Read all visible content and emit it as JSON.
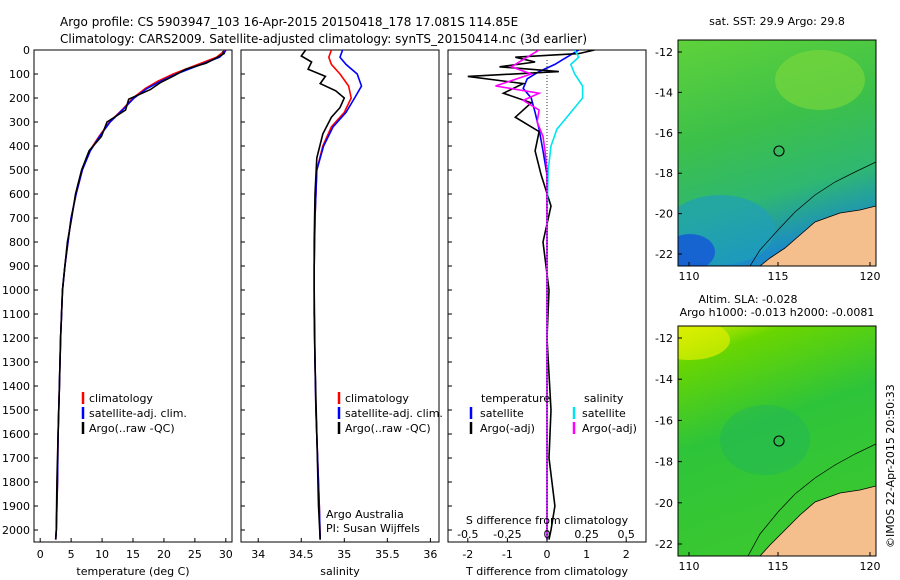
{
  "header": {
    "line1": "Argo profile: CS 5903947_103 16-Apr-2015 20150418_178 17.081S 114.85E",
    "line2": "Climatology: CARS2009. Satellite-adjusted climatology: synTS_20150414.nc (3d earlier)"
  },
  "colors": {
    "climatology": "#ff0000",
    "satellite": "#0000ff",
    "argo": "#000000",
    "sat_salinity": "#00e5ee",
    "argo_salinity": "#ff00ff",
    "land": "#f4bf8c"
  },
  "chart_data": [
    {
      "type": "line",
      "name": "temperature-profile",
      "xlabel": "temperature (deg C)",
      "ylabel": "",
      "xlim": [
        -1,
        31
      ],
      "ylim": [
        2050,
        0
      ],
      "y_inverted": true,
      "x_ticks": [
        0,
        5,
        10,
        15,
        20,
        25,
        30
      ],
      "y_ticks": [
        0,
        100,
        200,
        300,
        400,
        500,
        600,
        700,
        800,
        900,
        1000,
        1100,
        1200,
        1300,
        1400,
        1500,
        1600,
        1700,
        1800,
        1900,
        2000
      ],
      "legend": [
        "climatology",
        "satellite-adj. clim.",
        "Argo(..raw -QC)"
      ],
      "series": [
        {
          "name": "climatology",
          "color": "#ff0000",
          "x": [
            29.8,
            29.5,
            28.5,
            26.5,
            24,
            21.5,
            19,
            17,
            15,
            13.2,
            11.2,
            9.5,
            8,
            6.8,
            5.8,
            5,
            4.5,
            4,
            3.6,
            3.3,
            3.1,
            2.9,
            2.8,
            2.6,
            2.5
          ],
          "y": [
            0,
            10,
            30,
            50,
            75,
            100,
            130,
            160,
            200,
            250,
            300,
            360,
            420,
            500,
            600,
            700,
            800,
            900,
            1000,
            1200,
            1400,
            1600,
            1800,
            2000,
            2040
          ]
        },
        {
          "name": "satellite-adj. clim.",
          "color": "#0000ff",
          "x": [
            30,
            29.8,
            29,
            27,
            24.5,
            22,
            19.5,
            17.3,
            15.2,
            13.3,
            11.3,
            9.6,
            8.1,
            6.8,
            5.8,
            5,
            4.5,
            4,
            3.6,
            3.3,
            3.1,
            2.9,
            2.8,
            2.6,
            2.5
          ],
          "y": [
            0,
            10,
            30,
            50,
            75,
            100,
            130,
            160,
            200,
            250,
            300,
            360,
            420,
            500,
            600,
            700,
            800,
            900,
            1000,
            1200,
            1400,
            1600,
            1800,
            2000,
            2040
          ]
        },
        {
          "name": "Argo(..raw -QC)",
          "color": "#000000",
          "x": [
            29.5,
            29.7,
            28.3,
            26.8,
            23.5,
            21.8,
            19.5,
            17.8,
            14.3,
            13.8,
            10.8,
            9.9,
            7.9,
            6.7,
            5.7,
            5.1,
            4.4,
            4,
            3.6,
            3.3,
            3.1,
            2.9,
            2.7,
            2.6,
            2.5
          ],
          "y": [
            5,
            15,
            35,
            55,
            80,
            105,
            135,
            165,
            205,
            250,
            300,
            360,
            420,
            500,
            600,
            700,
            800,
            900,
            1000,
            1200,
            1400,
            1600,
            1800,
            2000,
            2040
          ]
        }
      ]
    },
    {
      "type": "line",
      "name": "salinity-profile",
      "xlabel": "salinity",
      "ylabel": "",
      "xlim": [
        33.8,
        36.1
      ],
      "ylim": [
        2050,
        0
      ],
      "y_inverted": true,
      "x_ticks": [
        34,
        34.5,
        35,
        35.5,
        36
      ],
      "legend": [
        "climatology",
        "satellite-adj. clim.",
        "Argo(..raw -QC)"
      ],
      "annotation": [
        "Argo Australia",
        "PI: Susan Wijffels"
      ],
      "series": [
        {
          "name": "climatology",
          "color": "#ff0000",
          "x": [
            34.85,
            34.82,
            34.85,
            34.95,
            35.05,
            35.08,
            35.0,
            34.85,
            34.75,
            34.68,
            34.66,
            34.65,
            34.65,
            34.66,
            34.67,
            34.69,
            34.71,
            34.72
          ],
          "y": [
            0,
            30,
            60,
            100,
            150,
            200,
            260,
            320,
            400,
            500,
            700,
            900,
            1100,
            1300,
            1500,
            1700,
            1900,
            2040
          ]
        },
        {
          "name": "satellite-adj. clim.",
          "color": "#0000ff",
          "x": [
            34.98,
            34.95,
            35.02,
            35.15,
            35.2,
            35.12,
            35.02,
            34.87,
            34.76,
            34.68,
            34.66,
            34.65,
            34.65,
            34.66,
            34.67,
            34.69,
            34.71,
            34.72
          ],
          "y": [
            0,
            30,
            60,
            100,
            150,
            200,
            260,
            320,
            400,
            500,
            700,
            900,
            1100,
            1300,
            1500,
            1700,
            1900,
            2040
          ]
        },
        {
          "name": "Argo(..raw -QC)",
          "color": "#000000",
          "x": [
            34.55,
            34.5,
            34.62,
            34.58,
            34.78,
            34.72,
            34.9,
            35.0,
            34.95,
            34.85,
            34.75,
            34.68,
            34.66,
            34.65,
            34.65,
            34.66,
            34.68,
            34.7,
            34.72
          ],
          "y": [
            0,
            25,
            50,
            80,
            110,
            140,
            170,
            200,
            240,
            280,
            350,
            450,
            600,
            800,
            1000,
            1300,
            1600,
            1900,
            2040
          ]
        }
      ]
    },
    {
      "type": "line",
      "name": "difference-profile",
      "xlabel": "T difference from climatology",
      "xlabel_top": "S difference from climatology",
      "xlim": [
        -2.5,
        2.5
      ],
      "ylim": [
        2050,
        0
      ],
      "y_inverted": true,
      "x_ticks_t": [
        -2,
        -1,
        0,
        1,
        2
      ],
      "x_ticks_s": [
        "-0.5",
        "-0.25",
        "0",
        "0.25",
        "0.5"
      ],
      "legend_temperature": [
        "temperature",
        "satellite",
        "Argo(-adj)"
      ],
      "legend_salinity": [
        "salinity",
        "satellite",
        "Argo(-adj)"
      ],
      "series": [
        {
          "name": "temperature satellite",
          "color": "#0000ff",
          "x": [
            0.8,
            0.6,
            0.4,
            0.2,
            -0.2,
            -0.5,
            -0.6,
            -0.4,
            -0.3,
            -0.2,
            -0.1,
            0,
            0,
            0,
            0,
            0,
            0,
            0
          ],
          "y": [
            0,
            20,
            40,
            60,
            90,
            120,
            160,
            200,
            260,
            330,
            420,
            520,
            700,
            900,
            1200,
            1500,
            1800,
            2040
          ]
        },
        {
          "name": "temperature Argo(-adj)",
          "color": "#000000",
          "x": [
            1.2,
            0.8,
            -0.8,
            -0.3,
            -1.2,
            0.3,
            -2.0,
            -0.6,
            -1.1,
            -0.4,
            -0.8,
            -0.2,
            -0.3,
            -0.15,
            0.1,
            -0.1,
            0.05,
            0,
            0.1,
            0.05,
            0.2,
            0.1,
            0.05
          ],
          "y": [
            0,
            15,
            30,
            50,
            70,
            90,
            110,
            140,
            180,
            220,
            280,
            340,
            420,
            520,
            650,
            800,
            1000,
            1200,
            1500,
            1700,
            1900,
            2000,
            2040
          ]
        },
        {
          "name": "salinity satellite",
          "color": "#00e5ee",
          "x": [
            0.7,
            0.8,
            0.6,
            0.7,
            0.9,
            0.9,
            0.7,
            0.5,
            0.25,
            0.1,
            0.03,
            0,
            0
          ],
          "y": [
            0,
            30,
            60,
            100,
            150,
            200,
            240,
            280,
            330,
            400,
            500,
            700,
            2040
          ]
        },
        {
          "name": "salinity Argo(-adj)",
          "color": "#ff00ff",
          "x": [
            -0.2,
            -0.6,
            -0.9,
            -0.4,
            -1.3,
            -0.2,
            -0.6,
            -0.2,
            -0.25,
            -0.1,
            -0.05,
            0,
            0
          ],
          "y": [
            0,
            40,
            70,
            100,
            150,
            180,
            210,
            250,
            300,
            360,
            420,
            500,
            2040
          ]
        }
      ]
    }
  ],
  "maps": {
    "sst": {
      "title": "sat. SST: 29.9 Argo: 29.8",
      "x_ticks": [
        "110",
        "115",
        "120"
      ],
      "y_ticks": [
        "-12",
        "-14",
        "-16",
        "-18",
        "-20",
        "-22"
      ]
    },
    "sla": {
      "title1": "Altim. SLA: -0.028",
      "title2": "Argo h1000: -0.013 h2000: -0.0081",
      "x_ticks": [
        "110",
        "115",
        "120"
      ],
      "y_ticks": [
        "-12",
        "-14",
        "-16",
        "-18",
        "-20",
        "-22"
      ]
    }
  },
  "credit": "©IMOS 22-Apr-2015 20:50:33"
}
